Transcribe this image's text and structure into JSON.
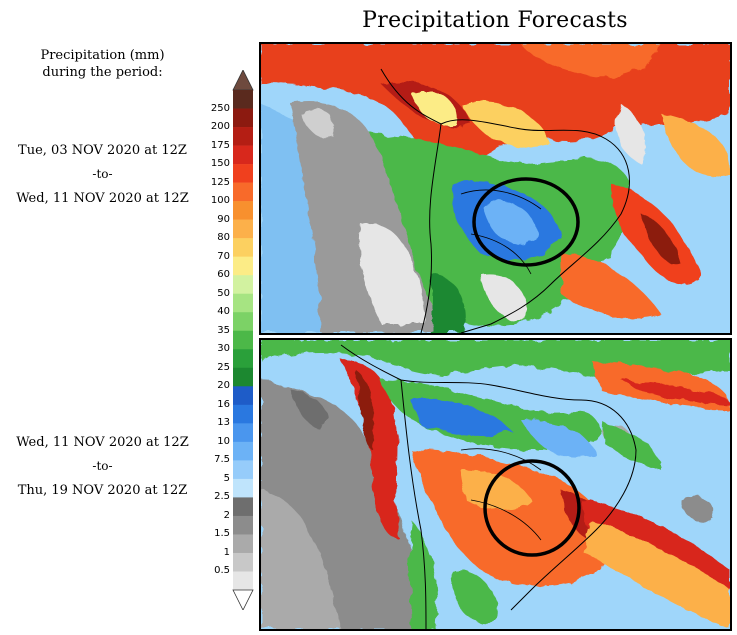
{
  "title": "Precipitation Forecasts",
  "legend": {
    "title_line1": "Precipitation (mm)",
    "title_line2": "during the period:",
    "ticks": [
      "250",
      "200",
      "175",
      "150",
      "125",
      "100",
      "90",
      "80",
      "70",
      "60",
      "50",
      "40",
      "35",
      "30",
      "25",
      "20",
      "16",
      "13",
      "10",
      "7.5",
      "5",
      "2.5",
      "2",
      "1.5",
      "1",
      "0.5"
    ],
    "colors": [
      "#5a2a1e",
      "#8c1a10",
      "#b41e14",
      "#d8281c",
      "#f0401e",
      "#f86a2a",
      "#f8902e",
      "#fcb04a",
      "#fcd060",
      "#fcec86",
      "#d2f2a0",
      "#a6e482",
      "#7cd266",
      "#4cb848",
      "#2aa03a",
      "#1c8830",
      "#1e5cc8",
      "#2a78e0",
      "#4a96ee",
      "#6cb2f6",
      "#96ccfa",
      "#bfe4fc",
      "#6e6e6e",
      "#8c8c8c",
      "#aaaaaa",
      "#c8c8c8",
      "#e6e6e6"
    ],
    "top_arrow_color": "#6e4a3e",
    "bottom_arrow_color": "#ffffff"
  },
  "periods": [
    {
      "from": "Tue, 03 NOV 2020 at 12Z",
      "to_label": "-to-",
      "to": "Wed, 11 NOV 2020 at 12Z"
    },
    {
      "from": "Wed, 11 NOV 2020 at 12Z",
      "to_label": "-to-",
      "to": "Thu, 19 NOV 2020 at 12Z"
    }
  ],
  "maps": [
    {
      "name": "forecast-map-period-1",
      "highlight": "circle-annotation"
    },
    {
      "name": "forecast-map-period-2",
      "highlight": "circle-annotation"
    }
  ]
}
